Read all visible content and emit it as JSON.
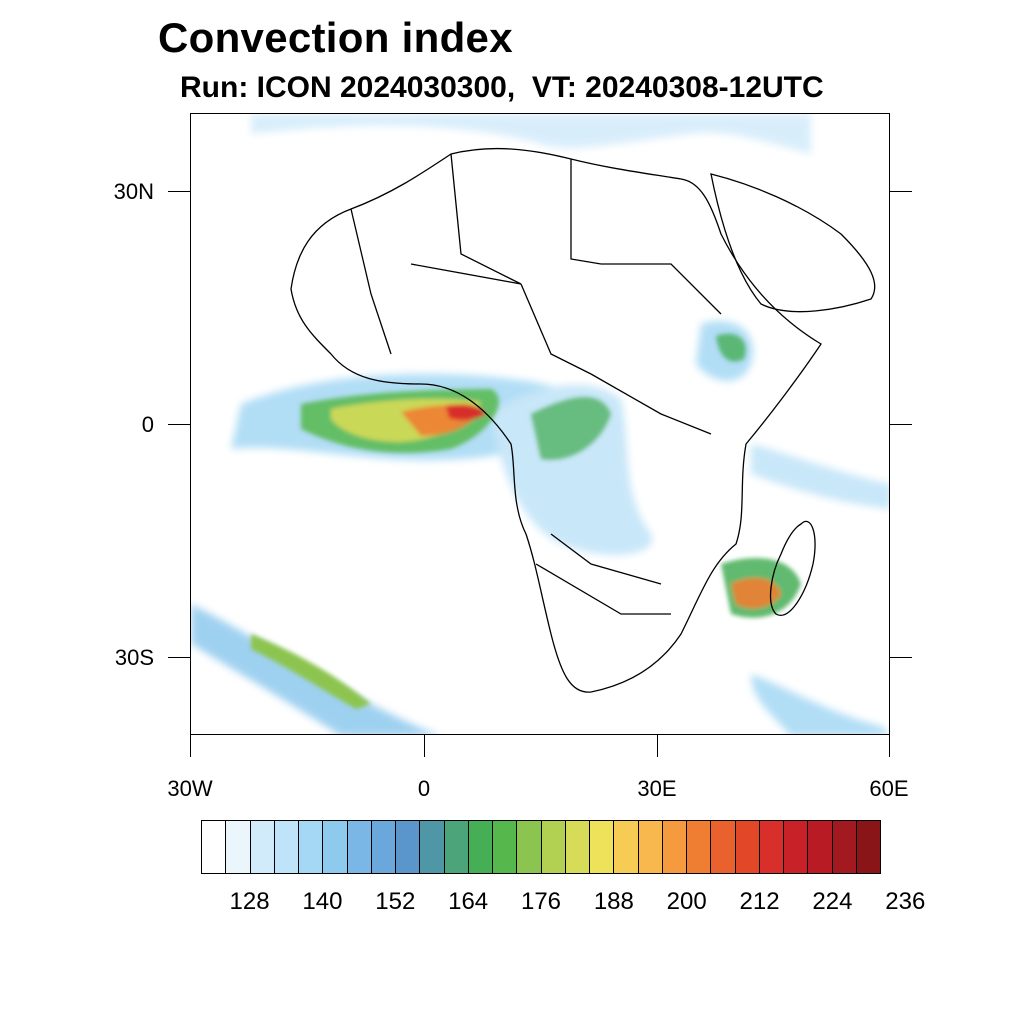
{
  "title": "Convection index",
  "subtitle": "Run: ICON 2024030300,  VT: 20240308-12UTC",
  "map": {
    "lat_labels": [
      "30N",
      "0",
      "30S"
    ],
    "lon_labels": [
      "30W",
      "0",
      "30E",
      "60E"
    ],
    "lat_values": [
      30,
      0,
      -30
    ],
    "lon_values": [
      -30,
      0,
      30,
      60
    ],
    "extent": {
      "lon_min": -30,
      "lon_max": 60,
      "lat_min": -40,
      "lat_max": 40
    }
  },
  "colorbar": {
    "colors": [
      "#ffffff",
      "#eaf5fc",
      "#d2ebfa",
      "#bfe3f8",
      "#a4d8f4",
      "#8ec9ee",
      "#7ab7e6",
      "#6aa8dc",
      "#5a96cc",
      "#4f96a6",
      "#4ca57a",
      "#46ae55",
      "#56b84c",
      "#8cc450",
      "#b2d152",
      "#d6dc58",
      "#eee25a",
      "#f7cc55",
      "#f9b84e",
      "#f59a3e",
      "#f07e32",
      "#e9612c",
      "#e24828",
      "#d82f2a",
      "#c92128",
      "#b81b24",
      "#a21a20",
      "#8a1519"
    ],
    "labels": [
      "128",
      "140",
      "152",
      "164",
      "176",
      "188",
      "200",
      "212",
      "224",
      "236"
    ],
    "label_positions": [
      2.5,
      5.5,
      8.5,
      11.5,
      14.5,
      17.5,
      20.5,
      23.5,
      26.5,
      29.5
    ]
  }
}
